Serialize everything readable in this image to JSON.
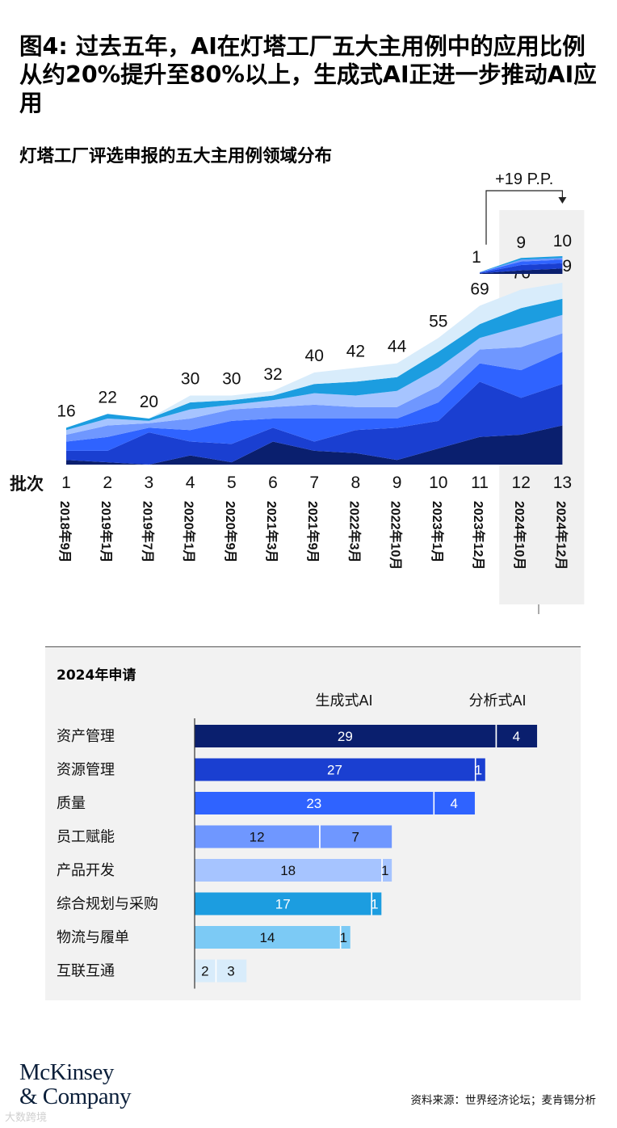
{
  "title": "图4: 过去五年，AI在灯塔工厂五大主用例中的应用比例从约20%提升至80%以上，生成式AI正进一步推动AI应用",
  "subtitle": "灯塔工厂评选申报的五大主用例领域分布",
  "chart_data": [
    {
      "type": "area",
      "stacked": true,
      "axis_label": "批次",
      "annotation": "+19 P.P.",
      "x": [
        "1",
        "2",
        "3",
        "4",
        "5",
        "6",
        "7",
        "8",
        "9",
        "10",
        "11",
        "12",
        "13"
      ],
      "dates": [
        "2018年9月",
        "2019年1月",
        "2019年7月",
        "2020年1月",
        "2020年9月",
        "2021年3月",
        "2021年9月",
        "2022年3月",
        "2022年10月",
        "2023年1月",
        "2023年12月",
        "2024年10月",
        "2024年12月"
      ],
      "totals": [
        16,
        22,
        20,
        30,
        30,
        32,
        40,
        42,
        44,
        55,
        69,
        76,
        79
      ],
      "series": [
        {
          "color": "#0a1f6e",
          "values": [
            2,
            1,
            0,
            4,
            1,
            10,
            6,
            5,
            2,
            7,
            12,
            13,
            17
          ]
        },
        {
          "color": "#1a3fd1",
          "values": [
            4,
            5,
            14,
            6,
            8,
            6,
            4,
            10,
            14,
            12,
            24,
            16,
            18
          ]
        },
        {
          "color": "#2f63ff",
          "values": [
            4,
            6,
            2,
            5,
            10,
            4,
            10,
            5,
            4,
            8,
            8,
            12,
            14
          ]
        },
        {
          "color": "#6f97ff",
          "values": [
            3,
            5,
            2,
            5,
            5,
            5,
            6,
            5,
            5,
            7,
            6,
            10,
            8
          ]
        },
        {
          "color": "#a6c4ff",
          "values": [
            2,
            3,
            1,
            4,
            2,
            3,
            5,
            5,
            7,
            8,
            5,
            9,
            8
          ]
        },
        {
          "color": "#1c9de0",
          "values": [
            1,
            2,
            1,
            3,
            2,
            2,
            4,
            6,
            6,
            7,
            6,
            8,
            7
          ]
        },
        {
          "color": "#d8ecfb",
          "values": [
            0,
            0,
            0,
            3,
            2,
            2,
            5,
            6,
            6,
            6,
            8,
            8,
            7
          ]
        }
      ],
      "genai": {
        "x": [
          "11",
          "12",
          "13"
        ],
        "totals": [
          1,
          9,
          10
        ],
        "series": [
          {
            "color": "#0a1f6e",
            "values": [
              0.3,
              2,
              3
            ]
          },
          {
            "color": "#1a3fd1",
            "values": [
              0.3,
              3,
              3
            ]
          },
          {
            "color": "#2f63ff",
            "values": [
              0.2,
              2,
              2
            ]
          },
          {
            "color": "#6f97ff",
            "values": [
              0.1,
              1,
              1
            ]
          },
          {
            "color": "#1c9de0",
            "values": [
              0.1,
              1,
              1
            ]
          }
        ]
      }
    },
    {
      "type": "bar",
      "orientation": "horizontal",
      "stacked": true,
      "title": "2024年申请",
      "series_names": [
        "生成式AI",
        "分析式AI"
      ],
      "categories": [
        "资产管理",
        "资源管理",
        "质量",
        "员工赋能",
        "产品开发",
        "综合规划与采购",
        "物流与履单",
        "互联互通"
      ],
      "generative": [
        29,
        27,
        23,
        12,
        18,
        17,
        14,
        2
      ],
      "analytical": [
        4,
        1,
        4,
        7,
        1,
        1,
        1,
        3
      ],
      "colors": [
        "#0a1f6e",
        "#1a3fd1",
        "#2f63ff",
        "#6f97ff",
        "#a6c4ff",
        "#1c9de0",
        "#7ccaf5",
        "#d8ecfb"
      ]
    }
  ],
  "footer": {
    "brand_line1": "McKinsey",
    "brand_line2": "& Company",
    "source": "资料来源：世界经济论坛；麦肯锡分析",
    "watermark": "大数跨境"
  }
}
